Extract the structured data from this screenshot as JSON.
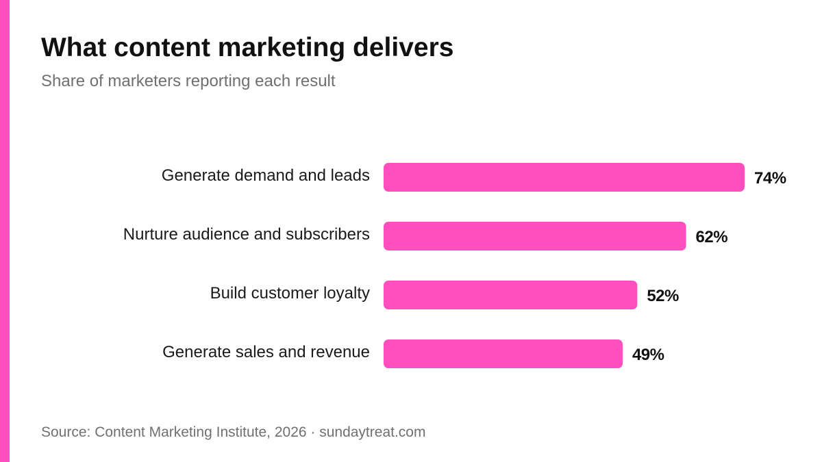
{
  "header": {
    "title": "What content marketing delivers",
    "subtitle": "Share of marketers reporting each result"
  },
  "footer": {
    "source": "Source: Content Marketing Institute, 2026 · sundaytreat.com"
  },
  "colors": {
    "accent": "#ff4fbf",
    "bar": "#ff4fbf"
  },
  "chart_data": {
    "type": "bar",
    "orientation": "horizontal",
    "title": "What content marketing delivers",
    "subtitle": "Share of marketers reporting each result",
    "categories": [
      "Generate demand and leads",
      "Nurture audience and subscribers",
      "Build customer loyalty",
      "Generate sales and revenue"
    ],
    "values": [
      74,
      62,
      52,
      49
    ],
    "value_labels": [
      "74%",
      "62%",
      "52%",
      "49%"
    ],
    "unit": "%",
    "xlim": [
      0,
      100
    ],
    "grid": false,
    "legend": "none"
  }
}
